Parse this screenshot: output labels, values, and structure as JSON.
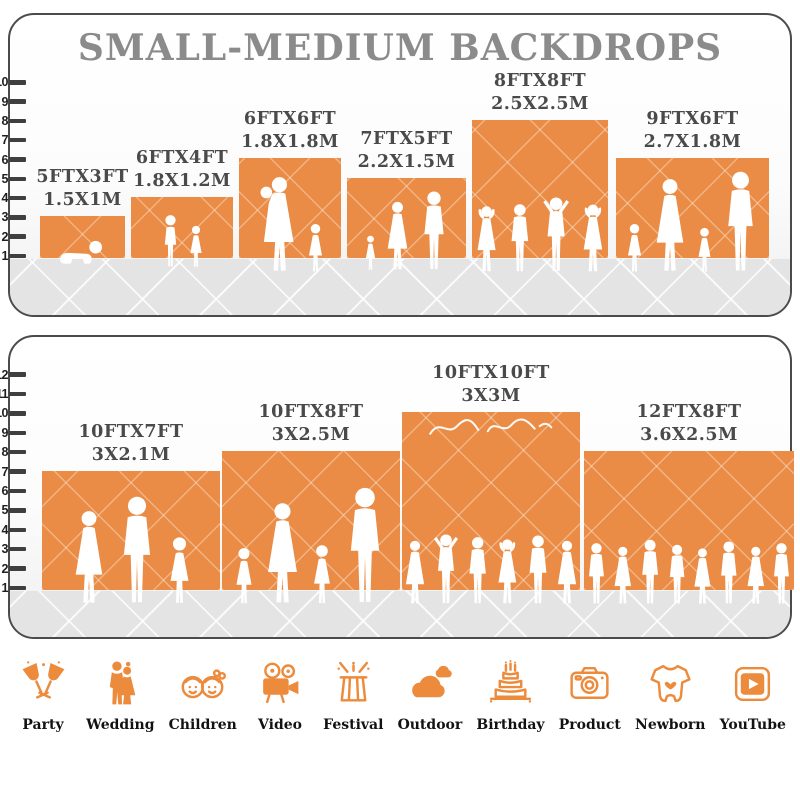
{
  "title": "SMALL-MEDIUM BACKDROPS",
  "colors": {
    "backdrop_orange": "#EA8C45",
    "icon_orange": "#ED8B3D",
    "title_gray": "#8B8B8B",
    "label_gray": "#4A4A4A",
    "floor_gray": "#E4E4E4"
  },
  "panel_small_medium": {
    "ruler": [
      "10",
      "9",
      "8",
      "7",
      "6",
      "5",
      "4",
      "3",
      "2",
      "1"
    ],
    "backdrops": [
      {
        "size_ft": "5FTX3FT",
        "size_m": "1.5X1M",
        "w_ft": 5,
        "h_ft": 3,
        "figures": [
          {
            "t": "baby-crawl",
            "s": 0.62
          }
        ]
      },
      {
        "size_ft": "6FTX4FT",
        "size_m": "1.8X1.2M",
        "w_ft": 6,
        "h_ft": 4,
        "figures": [
          {
            "t": "boy",
            "s": 0.88
          },
          {
            "t": "girl",
            "s": 0.7
          }
        ]
      },
      {
        "size_ft": "6FTX6FT",
        "size_m": "1.8X1.8M",
        "w_ft": 6,
        "h_ft": 6,
        "figures": [
          {
            "t": "woman-baby",
            "s": 0.97
          },
          {
            "t": "girl",
            "s": 0.5
          }
        ]
      },
      {
        "size_ft": "7FTX5FT",
        "size_m": "2.2X1.5M",
        "w_ft": 7,
        "h_ft": 5,
        "figures": [
          {
            "t": "girl",
            "s": 0.45
          },
          {
            "t": "woman",
            "s": 0.88
          },
          {
            "t": "man",
            "s": 1.0
          }
        ]
      },
      {
        "size_ft": "8FTX8FT",
        "size_m": "2.5X2.5M",
        "w_ft": 8,
        "h_ft": 8,
        "figures": [
          {
            "t": "woman-arms-up",
            "s": 0.64
          },
          {
            "t": "man",
            "s": 0.66
          },
          {
            "t": "man-arms-up",
            "s": 0.7
          },
          {
            "t": "woman-arms-up",
            "s": 0.65
          }
        ]
      },
      {
        "size_ft": "9FTX6FT",
        "size_m": "2.7X1.8M",
        "w_ft": 9,
        "h_ft": 6,
        "figures": [
          {
            "t": "girl",
            "s": 0.5
          },
          {
            "t": "woman",
            "s": 0.95
          },
          {
            "t": "girl",
            "s": 0.46
          },
          {
            "t": "man",
            "s": 1.02
          }
        ]
      }
    ]
  },
  "panel_large": {
    "ruler": [
      "12",
      "11",
      "10",
      "9",
      "8",
      "7",
      "6",
      "5",
      "4",
      "3",
      "2",
      "1"
    ],
    "backdrops": [
      {
        "size_ft": "10FTX7FT",
        "size_m": "3X2.1M",
        "w_ft": 10,
        "h_ft": 7,
        "figures": [
          {
            "t": "woman",
            "s": 0.8
          },
          {
            "t": "man",
            "s": 0.92
          },
          {
            "t": "girl",
            "s": 0.58
          }
        ]
      },
      {
        "size_ft": "10FTX8FT",
        "size_m": "3X2.5M",
        "w_ft": 10,
        "h_ft": 8,
        "figures": [
          {
            "t": "girl",
            "s": 0.42
          },
          {
            "t": "woman",
            "s": 0.74
          },
          {
            "t": "girl",
            "s": 0.44
          },
          {
            "t": "man",
            "s": 0.85
          }
        ]
      },
      {
        "size_ft": "10FTX10FT",
        "size_m": "3X3M",
        "w_ft": 10,
        "h_ft": 10,
        "watermark": true,
        "figures": [
          {
            "t": "woman",
            "s": 0.53
          },
          {
            "t": "man-arms-up",
            "s": 0.56
          },
          {
            "t": "man",
            "s": 0.55
          },
          {
            "t": "woman-arms-up",
            "s": 0.53
          },
          {
            "t": "man",
            "s": 0.56
          },
          {
            "t": "woman",
            "s": 0.52
          }
        ]
      },
      {
        "size_ft": "12FTX8FT",
        "size_m": "3.6X2.5M",
        "w_ft": 12,
        "h_ft": 8,
        "figures": [
          {
            "t": "man",
            "s": 0.63
          },
          {
            "t": "woman",
            "s": 0.6
          },
          {
            "t": "man",
            "s": 0.66
          },
          {
            "t": "man",
            "s": 0.62
          },
          {
            "t": "woman",
            "s": 0.59
          },
          {
            "t": "man",
            "s": 0.65
          },
          {
            "t": "woman",
            "s": 0.6
          },
          {
            "t": "man",
            "s": 0.63
          }
        ]
      }
    ]
  },
  "categories": [
    {
      "label": "Party",
      "icon": "party-icon"
    },
    {
      "label": "Wedding",
      "icon": "wedding-icon"
    },
    {
      "label": "Children",
      "icon": "children-icon"
    },
    {
      "label": "Video",
      "icon": "video-icon"
    },
    {
      "label": "Festival",
      "icon": "festival-icon"
    },
    {
      "label": "Outdoor",
      "icon": "outdoor-icon"
    },
    {
      "label": "Birthday",
      "icon": "birthday-icon"
    },
    {
      "label": "Product",
      "icon": "product-icon"
    },
    {
      "label": "Newborn",
      "icon": "newborn-icon"
    },
    {
      "label": "YouTube",
      "icon": "youtube-icon"
    }
  ]
}
